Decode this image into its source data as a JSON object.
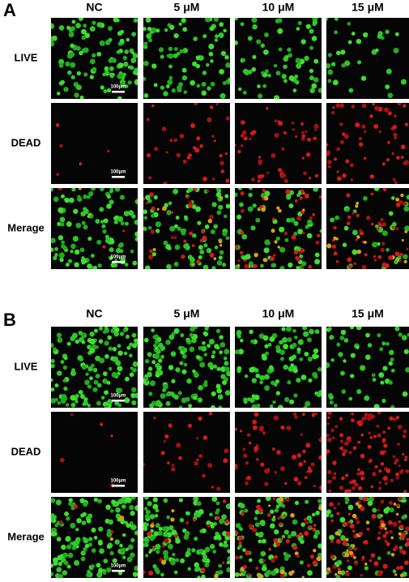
{
  "panels": [
    {
      "label": "A",
      "columns": [
        "NC",
        "5 μM",
        "10 μM",
        "15 μM"
      ],
      "rows": [
        {
          "label": "LIVE",
          "scale_bar": "100μm"
        },
        {
          "label": "DEAD",
          "scale_bar": "100μm"
        },
        {
          "label": "Merage",
          "scale_bar": "100μm"
        }
      ]
    },
    {
      "label": "B",
      "columns": [
        "NC",
        "5 μM",
        "10 μM",
        "15 μM"
      ],
      "rows": [
        {
          "label": "LIVE",
          "scale_bar": "100μm"
        },
        {
          "label": "DEAD",
          "scale_bar": "100μm"
        },
        {
          "label": "Merage",
          "scale_bar": "100μm"
        }
      ]
    }
  ]
}
